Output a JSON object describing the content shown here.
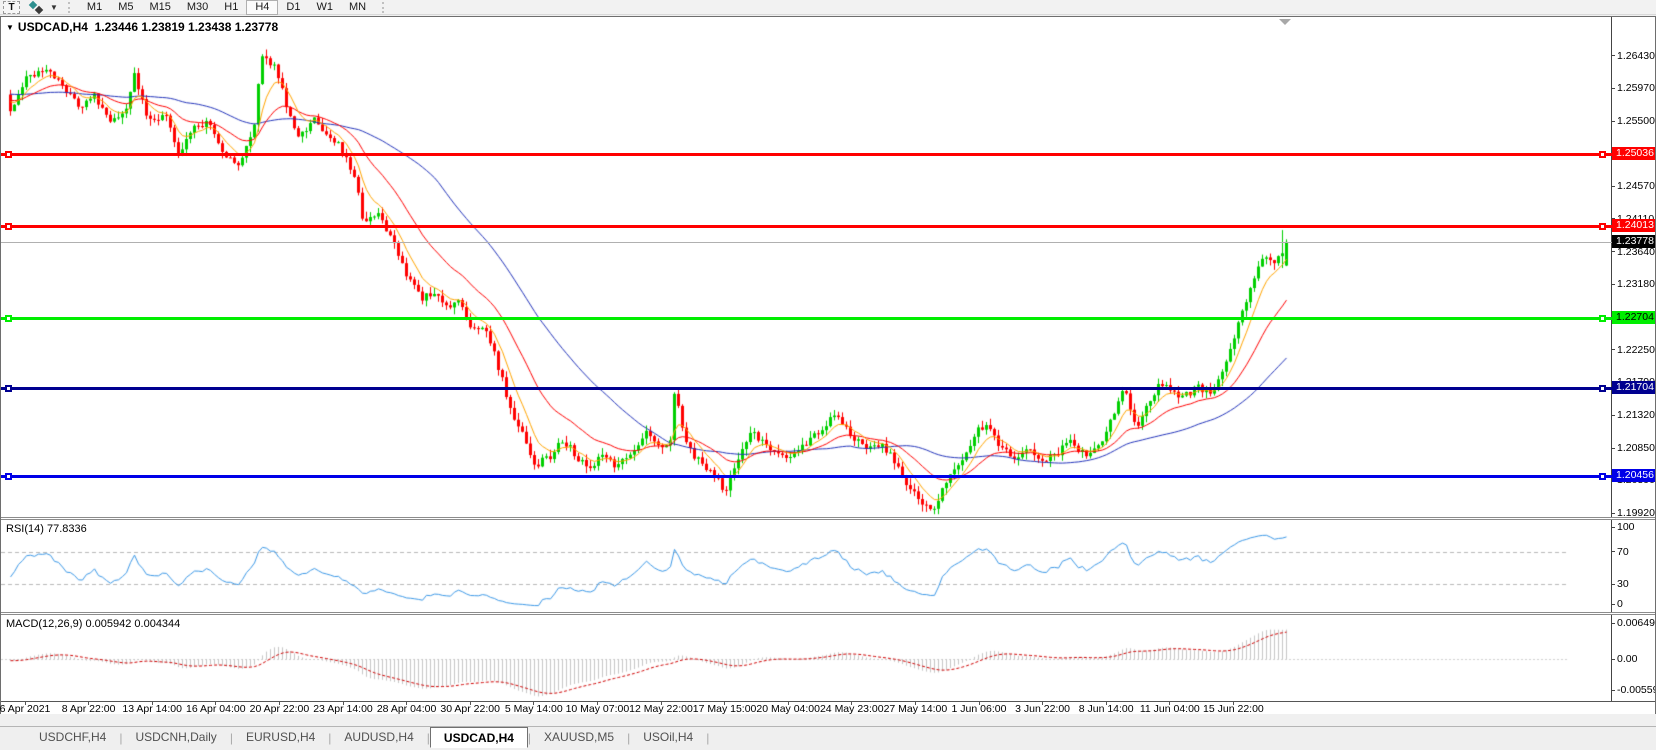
{
  "toolbar": {
    "text_tool_label": "T",
    "timeframes": [
      {
        "label": "M1",
        "active": false
      },
      {
        "label": "M5",
        "active": false
      },
      {
        "label": "M15",
        "active": false
      },
      {
        "label": "M30",
        "active": false
      },
      {
        "label": "H1",
        "active": false
      },
      {
        "label": "H4",
        "active": true
      },
      {
        "label": "D1",
        "active": false
      },
      {
        "label": "W1",
        "active": false
      },
      {
        "label": "MN",
        "active": false
      }
    ]
  },
  "chart": {
    "title": {
      "symbol_period": "USDCAD,H4",
      "ohlc_text": "1.23446 1.23819 1.23438 1.23778"
    }
  },
  "indicators": {
    "rsi": {
      "label": "RSI(14) 77.8336",
      "period": 14,
      "value": 77.8336,
      "axis": [
        {
          "text": "100",
          "v": 100
        },
        {
          "text": "70",
          "v": 70
        },
        {
          "text": "30",
          "v": 30
        },
        {
          "text": "0",
          "v": 0
        }
      ],
      "levels": [
        70,
        30
      ]
    },
    "macd": {
      "label": "MACD(12,26,9) 0.005942 0.004344",
      "fast": 12,
      "slow": 26,
      "signal": 9,
      "main_value": 0.005942,
      "signal_value": 0.004344,
      "axis": [
        {
          "text": "0.006491",
          "v": 0.006491
        },
        {
          "text": "0.00",
          "v": 0
        },
        {
          "text": "-0.005593",
          "v": -0.005593
        }
      ]
    }
  },
  "tabs": [
    {
      "label": "USDCHF,H4",
      "active": false
    },
    {
      "label": "USDCNH,Daily",
      "active": false
    },
    {
      "label": "EURUSD,H4",
      "active": false
    },
    {
      "label": "AUDUSD,H4",
      "active": false
    },
    {
      "label": "USDCAD,H4",
      "active": true
    },
    {
      "label": "XAUUSD,M5",
      "active": false
    },
    {
      "label": "USOil,H4",
      "active": false
    }
  ],
  "colors": {
    "bull": "#00cf00",
    "bear": "#ff0000",
    "ma_fast": "#ffa500",
    "ma_mid": "#ff0000",
    "ma_slow": "#2233bb",
    "rsi_line": "#3c99e8",
    "rsi_levels": "#b8b8b8",
    "macd_hist": "#c6c6c6",
    "macd_signal": "#d00000",
    "current_line": "#b0b0b0",
    "current_badge_bg": "#000000",
    "current_badge_text": "#ffffff"
  },
  "chart_data": {
    "type": "candlestick",
    "symbol": "USDCAD",
    "timeframe": "H4",
    "current_bar": {
      "open": 1.23446,
      "high": 1.23819,
      "low": 1.23438,
      "close": 1.23778
    },
    "y_range": [
      1.1987,
      1.2698
    ],
    "y_ticks": [
      "1.26430",
      "1.25970",
      "1.25500",
      "1.24570",
      "1.24110",
      "1.23640",
      "1.23180",
      "1.22250",
      "1.21790",
      "1.21320",
      "1.20850",
      "1.20390",
      "1.19920"
    ],
    "x_labels": [
      "6 Apr 2021",
      "8 Apr 22:00",
      "13 Apr 14:00",
      "16 Apr 04:00",
      "20 Apr 22:00",
      "23 Apr 14:00",
      "28 Apr 04:00",
      "30 Apr 22:00",
      "5 May 14:00",
      "10 May 07:00",
      "12 May 22:00",
      "17 May 15:00",
      "20 May 04:00",
      "24 May 23:00",
      "27 May 14:00",
      "1 Jun 06:00",
      "3 Jun 22:00",
      "8 Jun 14:00",
      "11 Jun 04:00",
      "15 Jun 22:00"
    ],
    "horizontal_lines": [
      {
        "label": "1.25036",
        "value": 1.25036,
        "color": "#ff0000",
        "text_color": "#ffffff"
      },
      {
        "label": "1.24013",
        "value": 1.24013,
        "color": "#ff0000",
        "text_color": "#ffffff"
      },
      {
        "label": "1.22704",
        "value": 1.22704,
        "color": "#00ee00",
        "text_color": "#000000"
      },
      {
        "label": "1.21704",
        "value": 1.21704,
        "color": "#000090",
        "text_color": "#ffffff"
      },
      {
        "label": "1.20456",
        "value": 1.20456,
        "color": "#0000e8",
        "text_color": "#ffffff"
      }
    ],
    "current_price": {
      "label": "1.23778",
      "value": 1.23778
    },
    "moving_averages": [
      {
        "name": "fast",
        "type": "ema",
        "period": 7,
        "color": "#ffa500"
      },
      {
        "name": "medium",
        "type": "ema",
        "period": 21,
        "color": "#ff0000"
      },
      {
        "name": "slow",
        "type": "sma",
        "period": 45,
        "color": "#2233bb"
      }
    ],
    "price_path_anchors": [
      [
        0.0,
        1.256
      ],
      [
        0.013,
        1.2612
      ],
      [
        0.029,
        1.2628
      ],
      [
        0.042,
        1.2595
      ],
      [
        0.055,
        1.257
      ],
      [
        0.066,
        1.2585
      ],
      [
        0.078,
        1.2545
      ],
      [
        0.089,
        1.2558
      ],
      [
        0.097,
        1.2615
      ],
      [
        0.109,
        1.2548
      ],
      [
        0.121,
        1.2562
      ],
      [
        0.132,
        1.2505
      ],
      [
        0.144,
        1.2538
      ],
      [
        0.156,
        1.2552
      ],
      [
        0.168,
        1.2502
      ],
      [
        0.179,
        1.2485
      ],
      [
        0.191,
        1.254
      ],
      [
        0.197,
        1.2645
      ],
      [
        0.207,
        1.263
      ],
      [
        0.217,
        1.257
      ],
      [
        0.227,
        1.2525
      ],
      [
        0.238,
        1.2555
      ],
      [
        0.249,
        1.253
      ],
      [
        0.26,
        1.251
      ],
      [
        0.27,
        1.247
      ],
      [
        0.277,
        1.2405
      ],
      [
        0.288,
        1.2415
      ],
      [
        0.299,
        1.2385
      ],
      [
        0.31,
        1.2335
      ],
      [
        0.321,
        1.2298
      ],
      [
        0.331,
        1.2308
      ],
      [
        0.342,
        1.2288
      ],
      [
        0.353,
        1.2292
      ],
      [
        0.362,
        1.2248
      ],
      [
        0.371,
        1.2262
      ],
      [
        0.381,
        1.221
      ],
      [
        0.39,
        1.2152
      ],
      [
        0.4,
        1.2108
      ],
      [
        0.411,
        1.2062
      ],
      [
        0.422,
        1.207
      ],
      [
        0.433,
        1.2098
      ],
      [
        0.444,
        1.2072
      ],
      [
        0.455,
        1.2058
      ],
      [
        0.466,
        1.2075
      ],
      [
        0.476,
        1.2058
      ],
      [
        0.487,
        1.2082
      ],
      [
        0.498,
        1.2105
      ],
      [
        0.509,
        1.2082
      ],
      [
        0.517,
        1.209
      ],
      [
        0.521,
        1.218
      ],
      [
        0.527,
        1.2108
      ],
      [
        0.538,
        1.2068
      ],
      [
        0.549,
        1.2055
      ],
      [
        0.56,
        1.2022
      ],
      [
        0.571,
        1.2075
      ],
      [
        0.581,
        1.2108
      ],
      [
        0.592,
        1.2088
      ],
      [
        0.603,
        1.2072
      ],
      [
        0.614,
        1.2078
      ],
      [
        0.625,
        1.2092
      ],
      [
        0.636,
        1.2115
      ],
      [
        0.647,
        1.2132
      ],
      [
        0.658,
        1.2108
      ],
      [
        0.669,
        1.2085
      ],
      [
        0.68,
        1.2092
      ],
      [
        0.691,
        1.2072
      ],
      [
        0.702,
        1.2038
      ],
      [
        0.713,
        1.2008
      ],
      [
        0.723,
        1.1998
      ],
      [
        0.734,
        1.2042
      ],
      [
        0.744,
        1.2065
      ],
      [
        0.755,
        1.2102
      ],
      [
        0.765,
        1.2122
      ],
      [
        0.776,
        1.2088
      ],
      [
        0.787,
        1.2072
      ],
      [
        0.798,
        1.2088
      ],
      [
        0.809,
        1.2062
      ],
      [
        0.82,
        1.2078
      ],
      [
        0.831,
        1.2092
      ],
      [
        0.842,
        1.2075
      ],
      [
        0.853,
        1.2088
      ],
      [
        0.864,
        1.213
      ],
      [
        0.873,
        1.2172
      ],
      [
        0.882,
        1.2115
      ],
      [
        0.892,
        1.2148
      ],
      [
        0.901,
        1.218
      ],
      [
        0.911,
        1.2162
      ],
      [
        0.92,
        1.2158
      ],
      [
        0.93,
        1.2172
      ],
      [
        0.939,
        1.2165
      ],
      [
        0.948,
        1.218
      ],
      [
        0.958,
        1.223
      ],
      [
        0.967,
        1.229
      ],
      [
        0.977,
        1.2335
      ],
      [
        0.984,
        1.236
      ],
      [
        0.991,
        1.235
      ],
      [
        1.0,
        1.2378
      ]
    ]
  }
}
